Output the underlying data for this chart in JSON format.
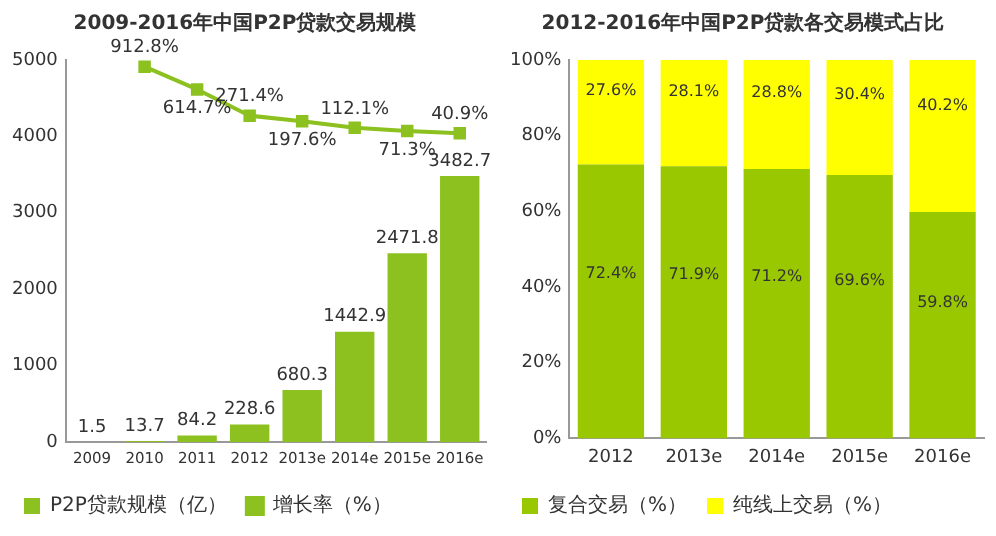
{
  "chart_data": [
    {
      "type": "bar",
      "title": "2009-2016年中国P2P贷款交易规模",
      "categories": [
        "2009",
        "2010",
        "2011",
        "2012",
        "2013e",
        "2014e",
        "2015e",
        "2016e"
      ],
      "series": [
        {
          "name": "P2P贷款规模（亿）",
          "color": "#8cc11f",
          "values": [
            1.5,
            13.7,
            84.2,
            228.6,
            680.3,
            1442.9,
            2471.8,
            3482.7
          ],
          "value_labels": [
            "1.5",
            "13.7",
            "84.2",
            "228.6",
            "680.3",
            "1442.9",
            "2471.8",
            "3482.7"
          ]
        },
        {
          "name": "增长率（%）",
          "type": "line",
          "axis": "y2",
          "color": "#8cc11f",
          "values": [
            null,
            912.8,
            614.7,
            271.4,
            197.6,
            112.1,
            71.3,
            40.9
          ],
          "value_labels": [
            null,
            "912.8%",
            "614.7%",
            "271.4%",
            "197.6%",
            "112.1%",
            "71.3%",
            "40.9%"
          ]
        }
      ],
      "ylim": [
        0,
        5000
      ],
      "yticks": [
        0,
        1000,
        2000,
        3000,
        4000,
        5000
      ],
      "y2lim": [
        -4000,
        1000
      ],
      "tick_labels": "xy",
      "marker": "square",
      "legend": "bottom",
      "grid": false
    },
    {
      "type": "bar",
      "title": "2012-2016年中国P2P贷款各交易模式占比",
      "categories": [
        "2012",
        "2013e",
        "2014e",
        "2015e",
        "2016e"
      ],
      "stacked": true,
      "series": [
        {
          "name": "复合交易（%）",
          "color": "#99c800",
          "values": [
            72.4,
            71.9,
            71.2,
            69.6,
            59.8
          ],
          "value_labels": [
            "72.4%",
            "71.9%",
            "71.2%",
            "69.6%",
            "59.8%"
          ]
        },
        {
          "name": "纯线上交易（%）",
          "color": "#ffff00",
          "values": [
            27.6,
            28.1,
            28.8,
            30.4,
            40.2
          ],
          "value_labels": [
            "27.6%",
            "28.1%",
            "28.8%",
            "30.4%",
            "40.2%"
          ]
        }
      ],
      "ylim": [
        0,
        100
      ],
      "yticks": [
        {
          "value": 0,
          "label": "0%"
        },
        {
          "value": 20,
          "label": "20%"
        },
        {
          "value": 40,
          "label": "40%"
        },
        {
          "value": 60,
          "label": "60%"
        },
        {
          "value": 80,
          "label": "80%"
        },
        {
          "value": 100,
          "label": "100%"
        }
      ],
      "legend": "bottom",
      "grid": false
    }
  ]
}
